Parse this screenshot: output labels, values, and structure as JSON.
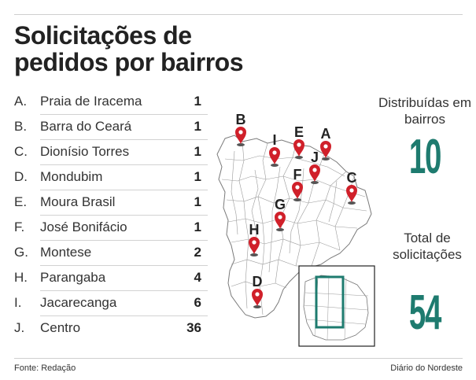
{
  "title": "Solicitações de pedidos por bairros",
  "neighborhoods": [
    {
      "letter": "A.",
      "name": "Praia de Iracema",
      "count": "1"
    },
    {
      "letter": "B.",
      "name": "Barra do Ceará",
      "count": "1"
    },
    {
      "letter": "C.",
      "name": "Dionísio Torres",
      "count": "1"
    },
    {
      "letter": "D.",
      "name": "Mondubim",
      "count": "1"
    },
    {
      "letter": "E.",
      "name": "Moura Brasil",
      "count": "1"
    },
    {
      "letter": "F.",
      "name": "José Bonifácio",
      "count": "1"
    },
    {
      "letter": "G.",
      "name": "Montese",
      "count": "2"
    },
    {
      "letter": "H.",
      "name": "Parangaba",
      "count": "4"
    },
    {
      "letter": "I.",
      "name": "Jacarecanga",
      "count": "6"
    },
    {
      "letter": "J.",
      "name": "Centro",
      "count": "36"
    }
  ],
  "map_markers": [
    "B",
    "I",
    "E",
    "J",
    "A",
    "F",
    "C",
    "G",
    "H",
    "D"
  ],
  "stats": {
    "districts_label": "Distribuídas em bairros",
    "districts_value": "10",
    "total_label": "Total de solicitações",
    "total_value": "54"
  },
  "footer": {
    "source": "Fonte: Redação",
    "publisher": "Diário do Nordeste"
  },
  "colors": {
    "accent": "#1e7b6f",
    "marker": "#d0202a"
  }
}
